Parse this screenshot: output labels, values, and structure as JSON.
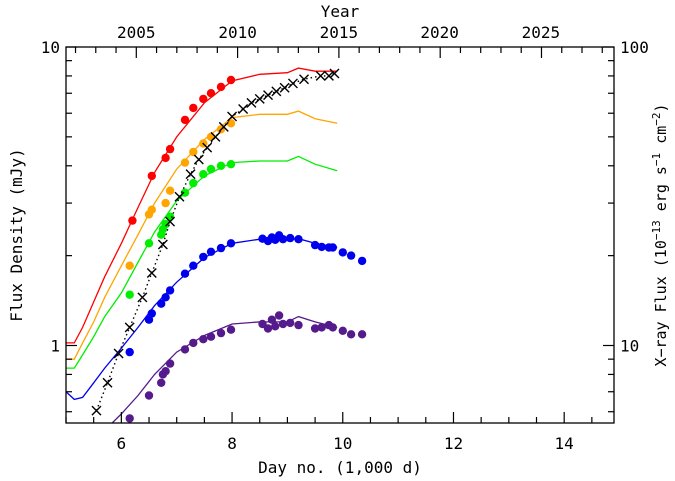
{
  "chart_data": {
    "type": "line",
    "title": "",
    "xlabel": "Day no. (1,000 d)",
    "ylabel": "Flux Density (mJy)",
    "top_axis_label": "Year",
    "right_axis_label": "X−ray Flux (10⁻¹³ erg s⁻¹ cm⁻²)",
    "xlim": [
      5.0,
      14.9
    ],
    "ylim": [
      0.55,
      10.0
    ],
    "yscale": "log",
    "right_ylim": [
      5.5,
      100
    ],
    "right_yscale": "log",
    "xticks": [
      6,
      8,
      10,
      12,
      14
    ],
    "xtick_labels": [
      "6",
      "8",
      "10",
      "12",
      "14"
    ],
    "yticks": [
      1,
      10
    ],
    "ytick_labels": [
      "1",
      "10"
    ],
    "right_yticks": [
      10,
      100
    ],
    "right_ytick_labels": [
      "10",
      "100"
    ],
    "top_ticks_day": [
      6.27,
      8.1,
      9.93,
      11.75,
      13.58
    ],
    "top_tick_labels": [
      "2005",
      "2010",
      "2015",
      "2020",
      "2025"
    ],
    "grid": false,
    "series": [
      {
        "color": "#ff0000",
        "line_x": [
          5.0,
          5.15,
          5.3,
          5.5,
          5.7,
          6.0,
          6.3,
          6.6,
          7.0,
          7.5,
          8.0,
          8.5,
          9.0,
          9.2,
          9.5,
          9.9
        ],
        "line_y": [
          1.02,
          1.02,
          1.15,
          1.4,
          1.7,
          2.2,
          2.9,
          3.8,
          5.0,
          6.5,
          7.7,
          8.1,
          8.2,
          8.5,
          8.3,
          8.3
        ],
        "points_x": [
          6.2,
          6.55,
          6.8,
          6.88,
          7.15,
          7.3,
          7.48,
          7.62,
          7.8,
          7.98
        ],
        "points_y": [
          2.62,
          3.7,
          4.25,
          4.55,
          5.7,
          6.25,
          6.7,
          7.0,
          7.35,
          7.75
        ]
      },
      {
        "color": "#ffa500",
        "line_x": [
          5.0,
          5.15,
          5.3,
          5.5,
          5.7,
          6.0,
          6.3,
          6.6,
          7.0,
          7.5,
          8.0,
          8.5,
          9.0,
          9.2,
          9.5,
          9.9
        ],
        "line_y": [
          0.9,
          0.9,
          1.02,
          1.2,
          1.45,
          1.85,
          2.35,
          3.0,
          3.9,
          4.9,
          5.8,
          5.95,
          5.95,
          6.1,
          5.75,
          5.55
        ],
        "points_x": [
          6.15,
          6.5,
          6.55,
          6.8,
          6.88,
          7.15,
          7.3,
          7.48,
          7.62,
          7.8,
          7.98
        ],
        "points_y": [
          1.85,
          2.75,
          2.85,
          3.0,
          3.3,
          4.1,
          4.45,
          4.75,
          5.0,
          5.3,
          5.55
        ]
      },
      {
        "color": "#00ee00",
        "line_x": [
          5.0,
          5.15,
          5.3,
          5.5,
          5.7,
          6.0,
          6.3,
          6.6,
          7.0,
          7.5,
          8.0,
          8.5,
          9.0,
          9.2,
          9.5,
          9.9
        ],
        "line_y": [
          0.84,
          0.84,
          0.93,
          1.07,
          1.25,
          1.5,
          1.9,
          2.4,
          3.05,
          3.7,
          4.1,
          4.15,
          4.15,
          4.3,
          4.05,
          3.85
        ],
        "points_x": [
          6.15,
          6.5,
          6.72,
          6.75,
          6.8,
          6.88,
          7.15,
          7.3,
          7.48,
          7.62,
          7.8,
          7.98
        ],
        "points_y": [
          1.48,
          2.2,
          2.35,
          2.45,
          2.55,
          2.7,
          3.25,
          3.5,
          3.75,
          3.9,
          4.0,
          4.05
        ]
      },
      {
        "color": "#0000ee",
        "line_x": [
          5.0,
          5.15,
          5.3,
          5.5,
          5.7,
          6.0,
          6.3,
          6.6,
          7.0,
          7.5,
          8.0,
          8.5,
          9.0,
          9.2,
          9.5,
          9.9
        ],
        "line_y": [
          0.7,
          0.66,
          0.67,
          0.75,
          0.84,
          0.98,
          1.15,
          1.36,
          1.63,
          1.97,
          2.2,
          2.27,
          2.26,
          2.28,
          2.2,
          2.13
        ],
        "points_x": [
          6.15,
          6.5,
          6.55,
          6.72,
          6.8,
          6.88,
          7.15,
          7.3,
          7.48,
          7.62,
          7.8,
          7.98,
          8.55,
          8.65,
          8.72,
          8.78,
          8.85,
          8.92,
          9.05,
          9.2,
          9.5,
          9.62,
          9.75,
          9.82,
          10.0,
          10.15,
          10.35
        ],
        "points_y": [
          0.95,
          1.22,
          1.28,
          1.38,
          1.45,
          1.53,
          1.74,
          1.85,
          1.98,
          2.06,
          2.12,
          2.2,
          2.28,
          2.24,
          2.3,
          2.26,
          2.34,
          2.27,
          2.29,
          2.27,
          2.17,
          2.14,
          2.13,
          2.13,
          2.05,
          2.0,
          1.92
        ]
      },
      {
        "color": "#551a8b",
        "line_x": [
          5.0,
          5.15,
          5.3,
          5.5,
          5.7,
          6.0,
          6.3,
          6.6,
          7.0,
          7.5,
          8.0,
          8.5,
          9.0,
          9.2,
          9.5,
          9.9
        ],
        "line_y": [
          0.43,
          0.43,
          0.45,
          0.48,
          0.52,
          0.59,
          0.68,
          0.8,
          0.95,
          1.08,
          1.18,
          1.2,
          1.2,
          1.25,
          1.2,
          1.15
        ],
        "points_x": [
          6.15,
          6.5,
          6.72,
          6.75,
          6.8,
          6.88,
          7.15,
          7.3,
          7.48,
          7.62,
          7.8,
          7.98,
          8.55,
          8.65,
          8.72,
          8.78,
          8.85,
          8.92,
          9.05,
          9.2,
          9.5,
          9.62,
          9.75,
          9.82,
          10.0,
          10.15,
          10.35
        ],
        "points_y": [
          0.57,
          0.68,
          0.75,
          0.8,
          0.82,
          0.87,
          0.97,
          1.02,
          1.05,
          1.07,
          1.1,
          1.13,
          1.18,
          1.14,
          1.22,
          1.16,
          1.26,
          1.18,
          1.19,
          1.17,
          1.14,
          1.15,
          1.17,
          1.15,
          1.12,
          1.09,
          1.09
        ]
      }
    ],
    "xray": {
      "color": "#000000",
      "marker": "x",
      "linestyle": "dotted",
      "axis": "right",
      "x": [
        5.55,
        5.75,
        5.95,
        6.15,
        6.38,
        6.55,
        6.75,
        6.88,
        7.05,
        7.25,
        7.4,
        7.55,
        7.7,
        7.85,
        8.0,
        8.2,
        8.35,
        8.5,
        8.65,
        8.8,
        8.95,
        9.1,
        9.3,
        9.6,
        9.75,
        9.85
      ],
      "y": [
        6.05,
        7.5,
        9.4,
        11.5,
        14.5,
        17.5,
        21.8,
        26.0,
        31.5,
        37.5,
        42.0,
        46.0,
        50.0,
        54.0,
        58.5,
        62.0,
        65.0,
        67.0,
        69.0,
        71.0,
        73.0,
        75.5,
        78.0,
        80.0,
        80.0,
        81.5
      ]
    }
  }
}
